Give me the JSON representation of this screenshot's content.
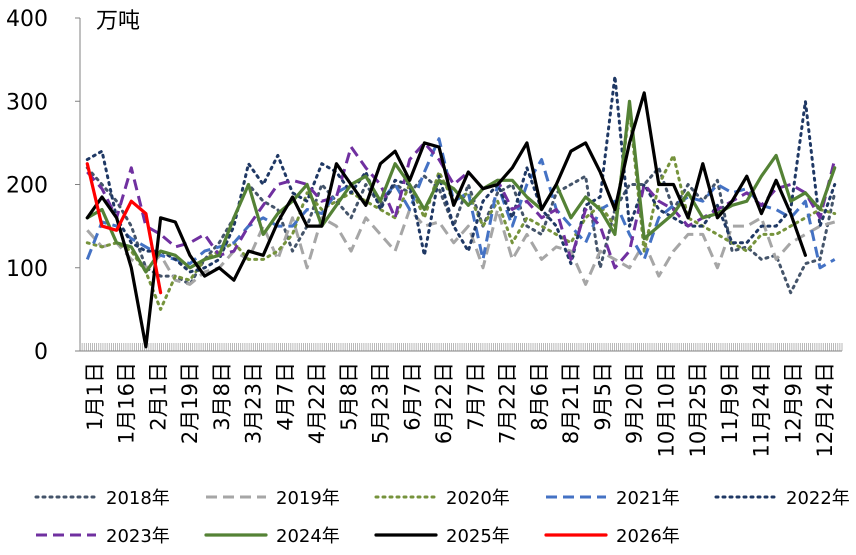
{
  "chart_data": {
    "type": "line",
    "title": "",
    "ylabel": "万吨",
    "xlabel": "",
    "ylim": [
      0,
      400
    ],
    "yticks": [
      0,
      100,
      200,
      300,
      400
    ],
    "grid": false,
    "legend_position": "bottom",
    "x_ticks": [
      "1月1日",
      "1月16日",
      "2月1日",
      "2月19日",
      "3月8日",
      "3月23日",
      "4月7日",
      "4月22日",
      "5月8日",
      "5月23日",
      "6月7日",
      "6月22日",
      "7月7日",
      "7月22日",
      "8月6日",
      "8月21日",
      "9月5日",
      "9月20日",
      "10月10日",
      "10月25日",
      "11月9日",
      "11月24日",
      "12月9日",
      "12月24日"
    ],
    "series": [
      {
        "name": "2018年",
        "color": "#44546a",
        "dash": "dot",
        "values": [
          220,
          200,
          180,
          150,
          100,
          90,
          90,
          80,
          110,
          130,
          160,
          200,
          180,
          170,
          120,
          150,
          200,
          180,
          160,
          200,
          175,
          200,
          190,
          210,
          195,
          150,
          200,
          150,
          190,
          200,
          150,
          140,
          190,
          200,
          210,
          100,
          170,
          200,
          200,
          220,
          170,
          200,
          180,
          205,
          120,
          125,
          110,
          115,
          70,
          105,
          110,
          190
        ]
      },
      {
        "name": "2019年",
        "color": "#a6a6a6",
        "dash": "dash",
        "values": [
          145,
          125,
          130,
          110,
          100,
          115,
          85,
          80,
          95,
          100,
          120,
          110,
          150,
          110,
          160,
          100,
          160,
          150,
          120,
          160,
          140,
          120,
          170,
          150,
          155,
          130,
          150,
          100,
          170,
          110,
          140,
          110,
          125,
          120,
          80,
          120,
          110,
          100,
          130,
          90,
          120,
          140,
          140,
          100,
          150,
          150,
          160,
          110,
          130,
          140,
          150,
          155
        ]
      },
      {
        "name": "2020年",
        "color": "#76933c",
        "dash": "dot",
        "values": [
          130,
          125,
          130,
          120,
          95,
          50,
          90,
          85,
          110,
          120,
          130,
          110,
          110,
          120,
          140,
          190,
          170,
          180,
          190,
          180,
          170,
          160,
          200,
          160,
          215,
          180,
          190,
          150,
          180,
          130,
          160,
          150,
          140,
          130,
          160,
          175,
          150,
          290,
          120,
          200,
          235,
          160,
          150,
          140,
          130,
          120,
          140,
          140,
          150,
          160,
          170,
          165
        ]
      },
      {
        "name": "2021年",
        "color": "#4472c4",
        "dash": "dash",
        "values": [
          110,
          155,
          150,
          135,
          125,
          115,
          110,
          105,
          120,
          125,
          130,
          150,
          160,
          150,
          150,
          170,
          165,
          190,
          200,
          210,
          180,
          200,
          170,
          215,
          255,
          180,
          190,
          110,
          200,
          150,
          200,
          230,
          170,
          150,
          130,
          170,
          180,
          140,
          110,
          160,
          175,
          185,
          180,
          200,
          190,
          195,
          175,
          170,
          160,
          180,
          100,
          110
        ]
      },
      {
        "name": "2022年",
        "color": "#1f3864",
        "dash": "dot",
        "values": [
          230,
          240,
          160,
          130,
          120,
          120,
          110,
          95,
          100,
          110,
          150,
          225,
          200,
          235,
          190,
          180,
          225,
          215,
          190,
          215,
          170,
          205,
          200,
          115,
          210,
          150,
          120,
          180,
          200,
          160,
          220,
          170,
          150,
          105,
          175,
          185,
          330,
          150,
          200,
          170,
          160,
          150,
          150,
          175,
          130,
          130,
          150,
          150,
          170,
          300,
          150,
          200
        ]
      },
      {
        "name": "2023年",
        "color": "#7030a0",
        "dash": "dash",
        "values": [
          215,
          195,
          160,
          220,
          150,
          140,
          125,
          130,
          140,
          115,
          120,
          150,
          175,
          200,
          205,
          200,
          180,
          185,
          245,
          220,
          200,
          160,
          230,
          250,
          230,
          200,
          215,
          195,
          205,
          170,
          180,
          160,
          170,
          110,
          170,
          150,
          100,
          120,
          200,
          180,
          170,
          150,
          160,
          170,
          180,
          190,
          175,
          195,
          200,
          190,
          160,
          230
        ]
      },
      {
        "name": "2024年",
        "color": "#548235",
        "dash": "solid",
        "values": [
          160,
          170,
          130,
          125,
          95,
          120,
          115,
          100,
          110,
          115,
          160,
          200,
          140,
          165,
          180,
          200,
          150,
          175,
          200,
          210,
          180,
          225,
          200,
          170,
          205,
          195,
          175,
          195,
          205,
          205,
          185,
          170,
          200,
          160,
          185,
          170,
          140,
          300,
          135,
          150,
          165,
          190,
          160,
          165,
          175,
          180,
          210,
          235,
          180,
          190,
          170,
          220
        ]
      },
      {
        "name": "2025年",
        "color": "#000000",
        "dash": "solid",
        "values": [
          160,
          185,
          160,
          100,
          5,
          160,
          155,
          115,
          90,
          100,
          85,
          120,
          115,
          155,
          185,
          150,
          150,
          225,
          200,
          175,
          225,
          240,
          205,
          250,
          245,
          175,
          215,
          195,
          200,
          220,
          250,
          170,
          200,
          240,
          250,
          215,
          170,
          250,
          310,
          200,
          200,
          160,
          225,
          160,
          180,
          210,
          165,
          205,
          165,
          115
        ]
      },
      {
        "name": "2026年",
        "color": "#ff0000",
        "dash": "solid",
        "values": [
          225,
          150,
          145,
          180,
          165,
          70
        ]
      }
    ]
  }
}
